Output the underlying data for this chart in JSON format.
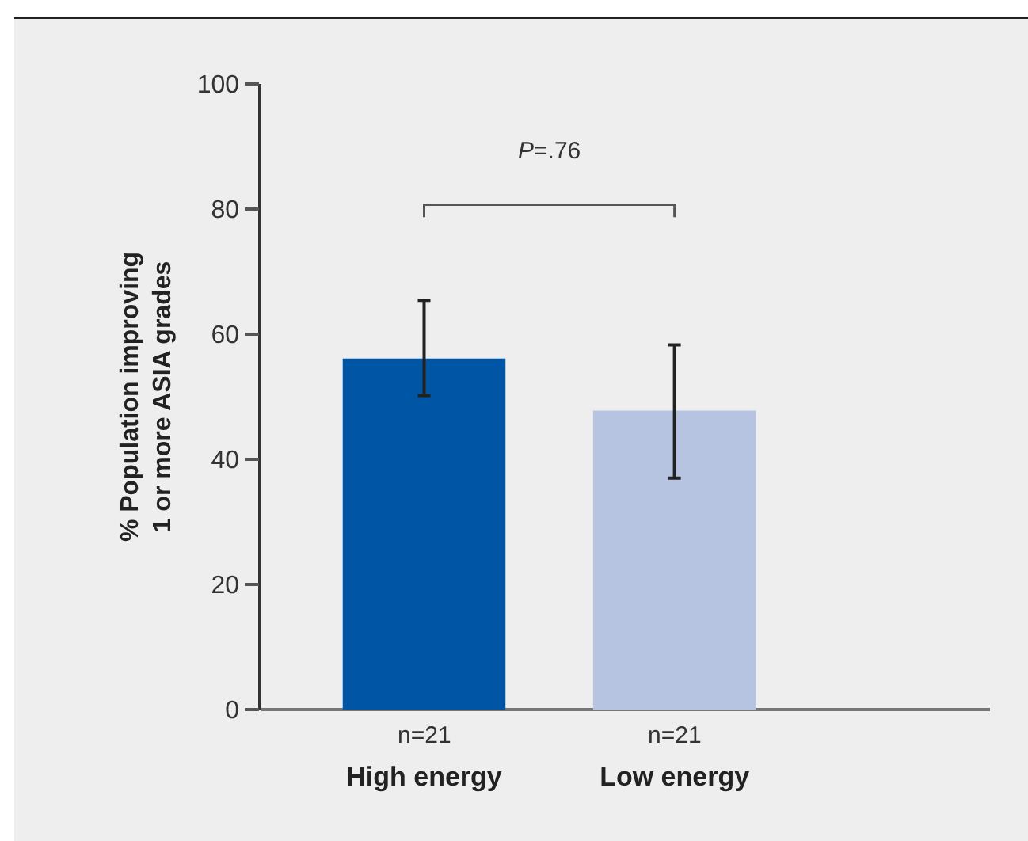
{
  "chart_data": {
    "type": "bar",
    "ylabel": "% Population improving 1 or more ASIA grades",
    "categories": [
      "High energy",
      "Low energy"
    ],
    "values": [
      56.1,
      47.8
    ],
    "colors": [
      "#0055a4",
      "#b6c3e1"
    ],
    "errors": [
      [
        50.2,
        65.4
      ],
      [
        37.0,
        58.3
      ]
    ],
    "ylim": [
      0,
      100
    ],
    "yticks": [
      0,
      20,
      40,
      60,
      80,
      100
    ],
    "annotations": [
      "n=21",
      "n=21",
      "P=.76"
    ]
  }
}
